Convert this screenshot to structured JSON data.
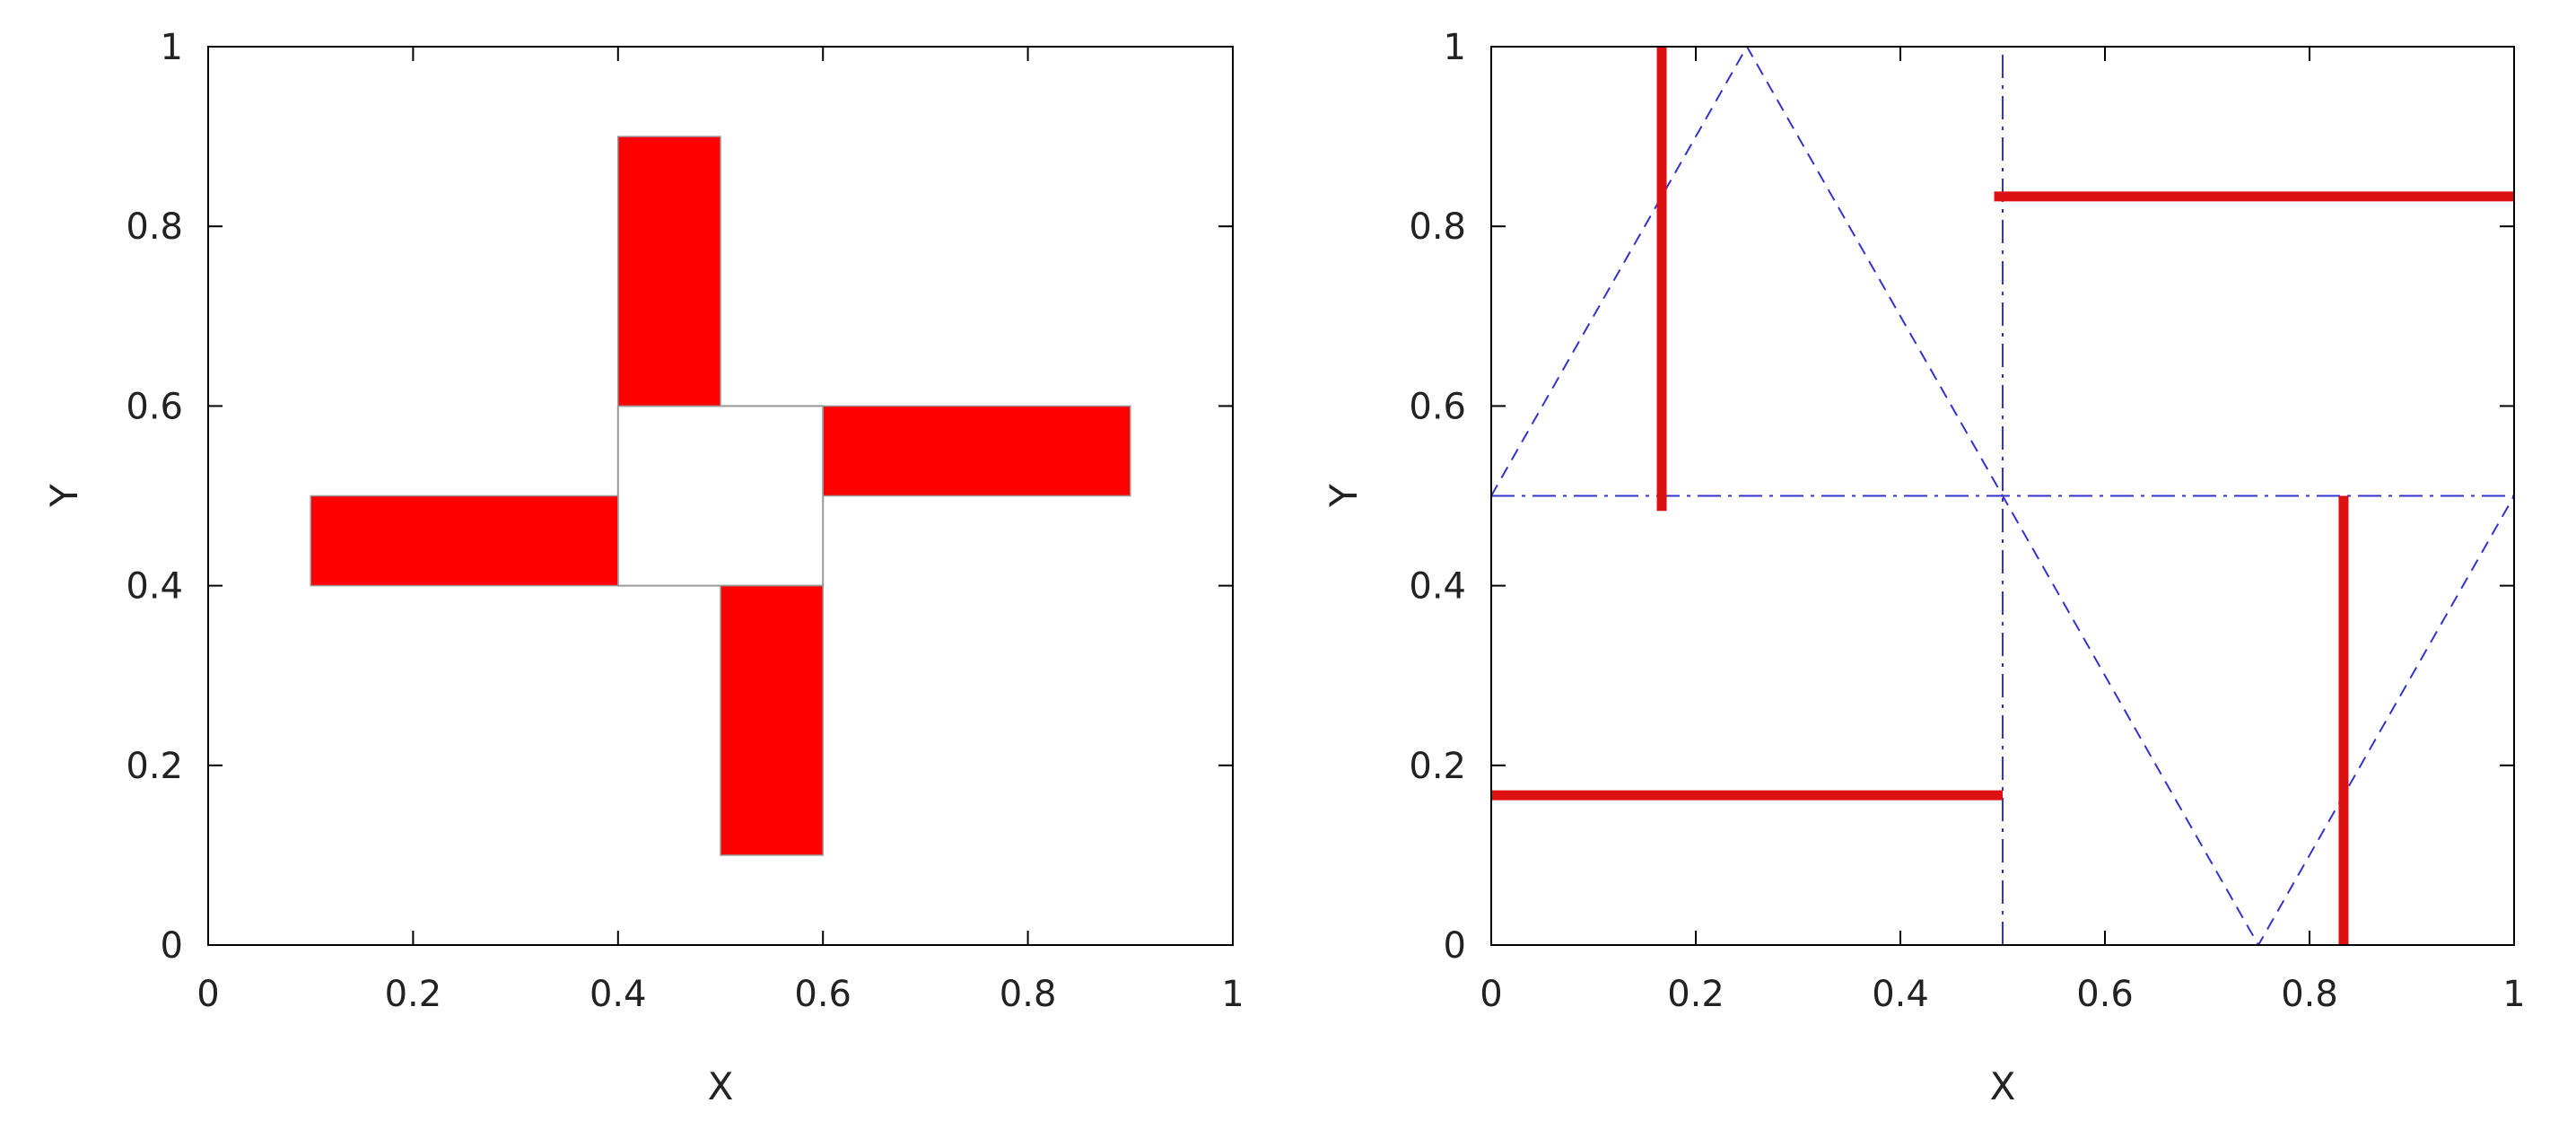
{
  "chart_data": [
    {
      "type": "area",
      "title": "",
      "xlabel": "X",
      "ylabel": "Y",
      "xlim": [
        0,
        1
      ],
      "ylim": [
        0,
        1
      ],
      "xticks": [
        "0",
        "0.2",
        "0.4",
        "0.6",
        "0.8",
        "1"
      ],
      "yticks": [
        "0",
        "0.2",
        "0.4",
        "0.6",
        "0.8",
        "1"
      ],
      "grid": false,
      "fill_color": "#ff0000",
      "outline_color": "#999999",
      "center_square": {
        "x": [
          0.4,
          0.6
        ],
        "y": [
          0.4,
          0.6
        ]
      },
      "rectangles": [
        {
          "x": [
            0.4,
            0.5
          ],
          "y": [
            0.6,
            0.9
          ]
        },
        {
          "x": [
            0.6,
            0.9
          ],
          "y": [
            0.5,
            0.6
          ]
        },
        {
          "x": [
            0.5,
            0.6
          ],
          "y": [
            0.1,
            0.4
          ]
        },
        {
          "x": [
            0.1,
            0.4
          ],
          "y": [
            0.4,
            0.5
          ]
        }
      ]
    },
    {
      "type": "line",
      "title": "",
      "xlabel": "X",
      "ylabel": "Y",
      "xlim": [
        0,
        1
      ],
      "ylim": [
        0,
        1
      ],
      "xticks": [
        "0",
        "0.2",
        "0.4",
        "0.6",
        "0.8",
        "1"
      ],
      "yticks": [
        "0",
        "0.2",
        "0.4",
        "0.6",
        "0.8",
        "1"
      ],
      "grid": false,
      "series": [
        {
          "style": "dashed",
          "color": "#3333cc",
          "x": [
            0,
            0.25,
            0.75,
            1
          ],
          "y": [
            0.5,
            1,
            0,
            0.5
          ]
        },
        {
          "style": "dash-dot",
          "color": "#3333cc",
          "x": [
            0,
            1
          ],
          "y": [
            0.5,
            0.5
          ]
        },
        {
          "style": "dash-dot",
          "color": "#3333cc",
          "x": [
            0.5,
            0.5
          ],
          "y": [
            0,
            1
          ]
        },
        {
          "style": "thick",
          "color": "#dd1111",
          "x": [
            0.1667,
            0.1667
          ],
          "y": [
            1,
            0.4833
          ]
        },
        {
          "style": "thick",
          "color": "#dd1111",
          "x": [
            0.4917,
            1
          ],
          "y": [
            0.8333,
            0.8333
          ]
        },
        {
          "style": "thick",
          "color": "#dd1111",
          "x": [
            0,
            0.5
          ],
          "y": [
            0.1667,
            0.1667
          ]
        },
        {
          "style": "thick",
          "color": "#dd1111",
          "x": [
            0.8333,
            0.8333
          ],
          "y": [
            0.5,
            0
          ]
        }
      ]
    }
  ]
}
